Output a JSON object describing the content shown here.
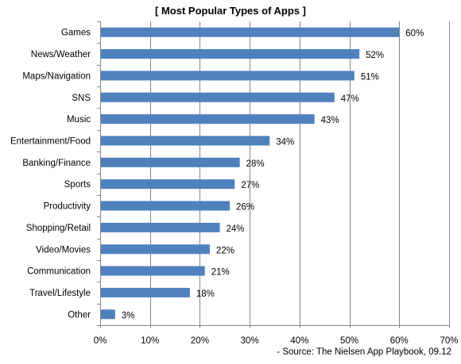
{
  "chart_data": {
    "type": "bar",
    "orientation": "horizontal",
    "title": "[ Most Popular Types of Apps ]",
    "source_note": "- Source: The Nielsen App Playbook, 09.12",
    "categories": [
      "Games",
      "News/Weather",
      "Maps/Navigation",
      "SNS",
      "Music",
      "Entertainment/Food",
      "Banking/Finance",
      "Sports",
      "Productivity",
      "Shopping/Retail",
      "Video/Movies",
      "Communication",
      "Travel/Lifestyle",
      "Other"
    ],
    "values": [
      60,
      52,
      51,
      47,
      43,
      34,
      28,
      27,
      26,
      24,
      22,
      21,
      18,
      3
    ],
    "value_labels": [
      "60%",
      "52%",
      "51%",
      "47%",
      "43%",
      "34%",
      "28%",
      "27%",
      "26%",
      "24%",
      "22%",
      "21%",
      "18%",
      "3%"
    ],
    "xlim": [
      0,
      70
    ],
    "x_ticks": [
      0,
      10,
      20,
      30,
      40,
      50,
      60,
      70
    ],
    "x_tick_labels": [
      "0%",
      "10%",
      "20%",
      "30%",
      "40%",
      "50%",
      "60%",
      "70%"
    ],
    "grid": "vertical",
    "colors": {
      "bar": "#4f81bd",
      "grid": "#868686",
      "axis": "#868686"
    }
  }
}
